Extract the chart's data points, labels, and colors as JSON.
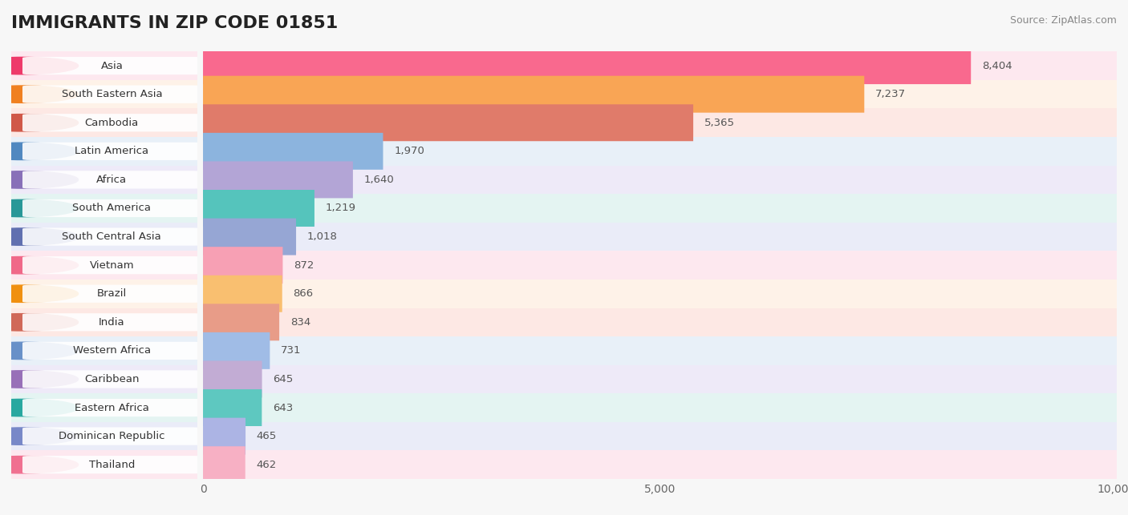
{
  "title": "IMMIGRANTS IN ZIP CODE 01851",
  "source": "Source: ZipAtlas.com",
  "categories": [
    "Asia",
    "South Eastern Asia",
    "Cambodia",
    "Latin America",
    "Africa",
    "South America",
    "South Central Asia",
    "Vietnam",
    "Brazil",
    "India",
    "Western Africa",
    "Caribbean",
    "Eastern Africa",
    "Dominican Republic",
    "Thailand"
  ],
  "values": [
    8404,
    7237,
    5365,
    1970,
    1640,
    1219,
    1018,
    872,
    866,
    834,
    731,
    645,
    643,
    465,
    462
  ],
  "bar_colors": [
    "#f9698e",
    "#f9a555",
    "#e07b6a",
    "#8cb4de",
    "#b3a5d6",
    "#55c4bc",
    "#96a6d4",
    "#f7a0b4",
    "#f9bf70",
    "#e89c88",
    "#a0bce6",
    "#c2acd4",
    "#5ec8c0",
    "#acb4e4",
    "#f7b0c4"
  ],
  "circle_colors": [
    "#ee3a6a",
    "#f08020",
    "#d05848",
    "#5088c0",
    "#8870b8",
    "#289898",
    "#6070b0",
    "#f06888",
    "#f09010",
    "#d06858",
    "#6890c8",
    "#9870b8",
    "#28a8a0",
    "#7888c8",
    "#f07090"
  ],
  "bg_row_colors": [
    "#fde8ef",
    "#fef2e8",
    "#fde8e4",
    "#e8f0f8",
    "#eeeaf8",
    "#e4f4f2",
    "#eaecf8",
    "#fde8ef",
    "#fef2e8",
    "#fde8e4",
    "#e8f0f8",
    "#eeeaf8",
    "#e4f4f2",
    "#eaecf8",
    "#fde8ef"
  ],
  "xmax": 10000,
  "xticks": [
    0,
    5000,
    10000
  ],
  "background_color": "#f7f7f7",
  "title_fontsize": 16,
  "label_fontsize": 9.5,
  "value_fontsize": 9.5
}
